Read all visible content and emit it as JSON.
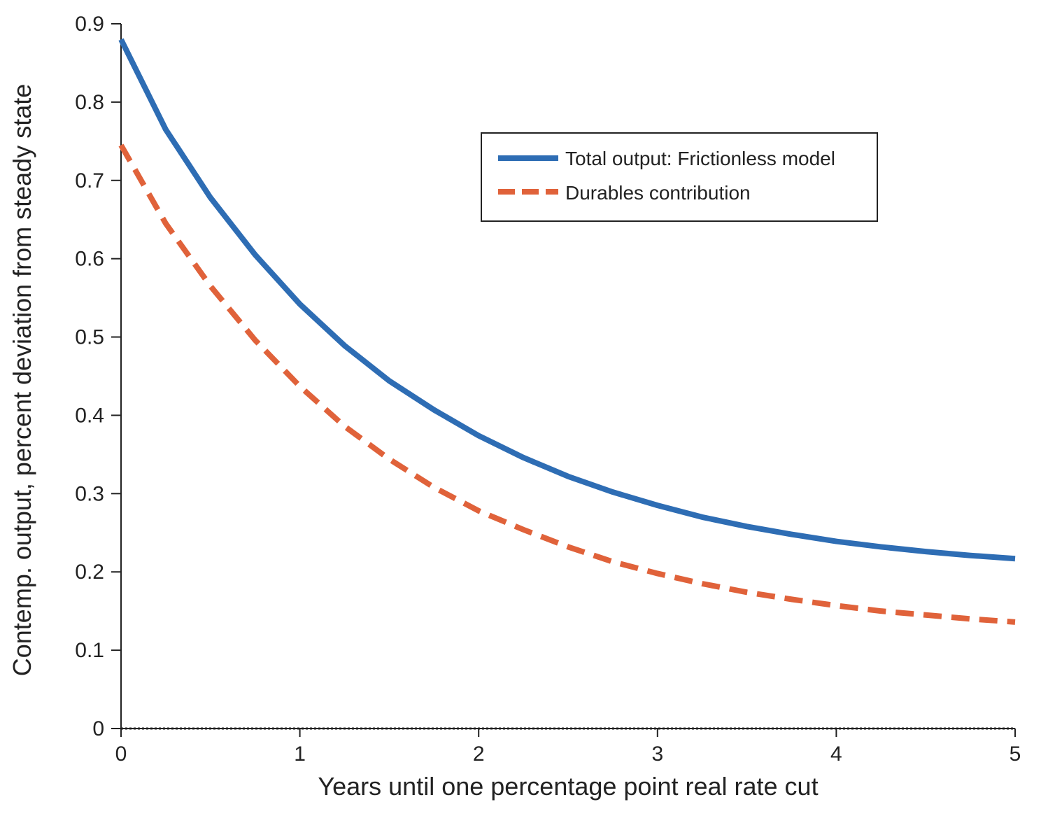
{
  "colors": {
    "total": "#2e6db4",
    "durables": "#e0623a",
    "axis": "#222222",
    "zero_line": "#222222"
  },
  "chart_data": {
    "type": "line",
    "title": "",
    "xlabel": "Years until one percentage point real rate cut",
    "ylabel": "Contemp. output, percent deviation from steady state",
    "xlim": [
      0,
      5
    ],
    "ylim": [
      0,
      0.9
    ],
    "xticks": [
      0,
      1,
      2,
      3,
      4,
      5
    ],
    "yticks": [
      0,
      0.1,
      0.2,
      0.3,
      0.4,
      0.5,
      0.6,
      0.7,
      0.8,
      0.9
    ],
    "grid": false,
    "zero_line": "dotted",
    "legend_position": "top-right",
    "x": [
      0,
      0.25,
      0.5,
      0.75,
      1,
      1.25,
      1.5,
      1.75,
      2,
      2.25,
      2.5,
      2.75,
      3,
      3.25,
      3.5,
      3.75,
      4,
      4.25,
      4.5,
      4.75,
      5
    ],
    "series": [
      {
        "name": "Total output: Frictionless model",
        "style": "solid",
        "color": "#2e6db4",
        "values": [
          0.88,
          0.765,
          0.678,
          0.605,
          0.542,
          0.489,
          0.444,
          0.407,
          0.374,
          0.346,
          0.322,
          0.302,
          0.285,
          0.27,
          0.258,
          0.248,
          0.239,
          0.232,
          0.226,
          0.221,
          0.217
        ]
      },
      {
        "name": "Durables contribution",
        "style": "dashed",
        "color": "#e0623a",
        "values": [
          0.745,
          0.645,
          0.565,
          0.496,
          0.437,
          0.386,
          0.344,
          0.308,
          0.278,
          0.254,
          0.232,
          0.213,
          0.198,
          0.185,
          0.174,
          0.165,
          0.157,
          0.15,
          0.145,
          0.14,
          0.136
        ]
      }
    ]
  }
}
